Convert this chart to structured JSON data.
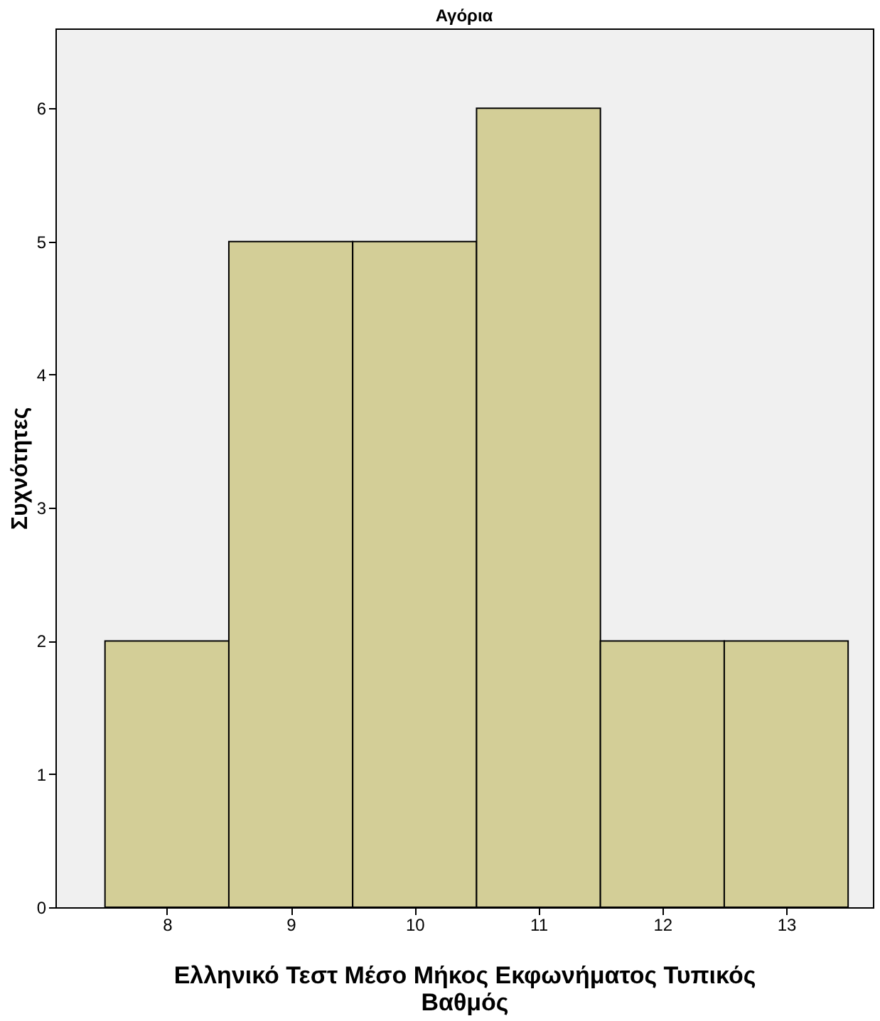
{
  "chart_data": {
    "type": "histogram",
    "title": "Αγόρια",
    "xlabel": "Ελληνικό Τεστ Μέσο Μήκος Εκφωνήματος Τυπικός Βαθμός",
    "ylabel": "Συχνότητες",
    "bins": [
      7.5,
      8.5,
      9.5,
      10.5,
      11.5,
      12.5,
      13.5
    ],
    "values": [
      2,
      5,
      5,
      6,
      2,
      2
    ],
    "color": "#d3ce97",
    "xlim": [
      7.1,
      13.7
    ],
    "xticks": [
      8,
      9,
      10,
      11,
      12,
      13
    ],
    "ylim": [
      0,
      6.6
    ],
    "yticks": [
      0,
      1,
      2,
      3,
      4,
      5,
      6
    ],
    "grid": false
  }
}
